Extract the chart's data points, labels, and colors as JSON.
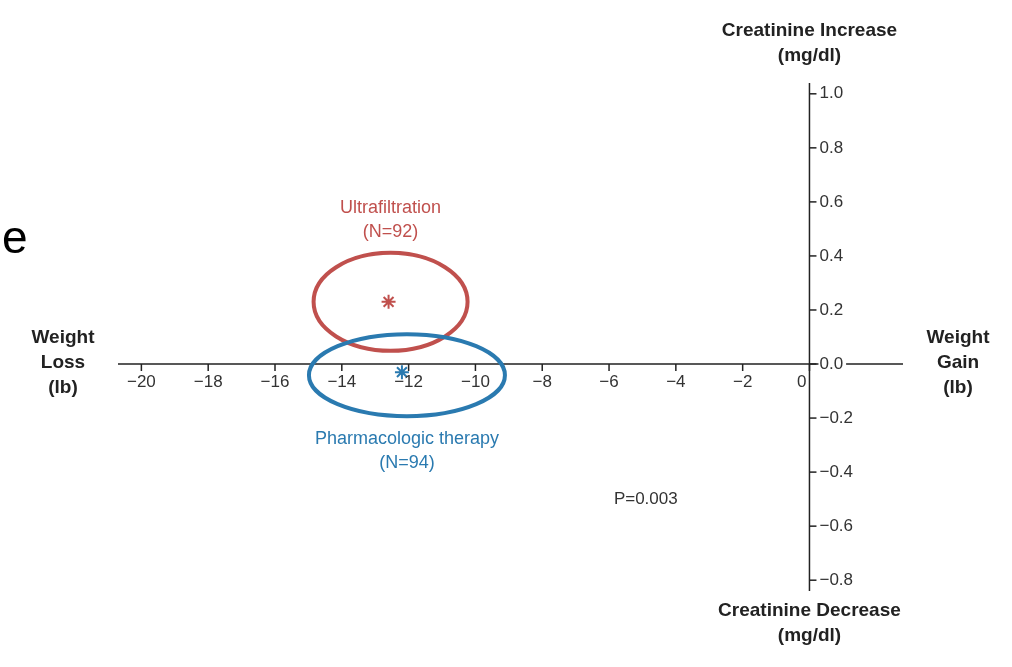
{
  "chart_data": {
    "type": "scatter",
    "xlabel": "Weight Loss (lb)",
    "ylabel": "Creatinine Increase (mg/dl)",
    "xlim": [
      -20.7,
      2.8
    ],
    "ylim": [
      -0.84,
      1.04
    ],
    "xticks": [
      -20,
      -18,
      -16,
      -14,
      -12,
      -10,
      -8,
      -6,
      -4,
      -2,
      0
    ],
    "yticks": [
      -0.8,
      -0.6,
      -0.4,
      -0.2,
      {
        "value": 0,
        "label": "0.0"
      },
      0.2,
      0.4,
      0.6,
      0.8,
      {
        "value": 1,
        "label": "1.0"
      }
    ],
    "marker": "cross",
    "legend": false,
    "grid": false,
    "series": [
      {
        "name": "Ultrafiltration (N=92)",
        "color": "#c0504d",
        "x": [
          -12.6
        ],
        "values": [
          0.23
        ]
      },
      {
        "name": "Pharmacologic therapy (N=94)",
        "color": "#2a7ab0",
        "x": [
          -12.2
        ],
        "values": [
          -0.03
        ]
      }
    ],
    "annotations": [
      "Weight Gain (lb)",
      "Creatinine Decrease (mg/dl)",
      "P=0.003",
      "e"
    ]
  }
}
